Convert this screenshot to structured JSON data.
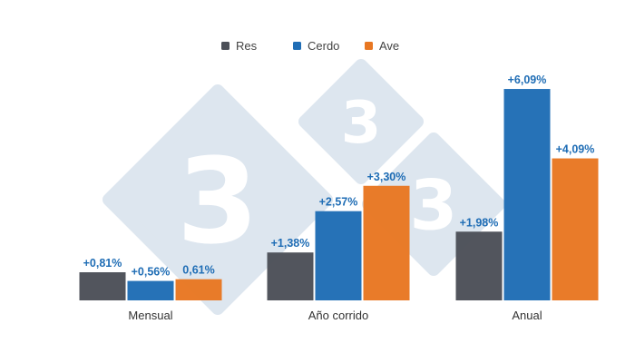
{
  "chart_data": {
    "type": "bar",
    "categories": [
      "Mensual",
      "Año corrido",
      "Anual"
    ],
    "series": [
      {
        "name": "Res",
        "color": "#4c5058",
        "values": [
          0.81,
          1.38,
          1.98
        ],
        "labels": [
          "+0,81%",
          "+1,38%",
          "+1,98%"
        ]
      },
      {
        "name": "Cerdo",
        "color": "#1f6db5",
        "values": [
          0.56,
          2.57,
          6.09
        ],
        "labels": [
          "+0,56%",
          "+2,57%",
          "+6,09%"
        ]
      },
      {
        "name": "Ave",
        "color": "#e87722",
        "values": [
          0.61,
          3.3,
          4.09
        ],
        "labels": [
          "0,61%",
          "+3,30%",
          "+4,09%"
        ]
      }
    ],
    "ylim": [
      0,
      6.3
    ],
    "label_color": "#1f6db5",
    "legend_position": "top-center",
    "grid": false,
    "xlabel": "",
    "ylabel": "",
    "title": ""
  },
  "watermark": {
    "text": "3",
    "color": "#dde6ef"
  }
}
